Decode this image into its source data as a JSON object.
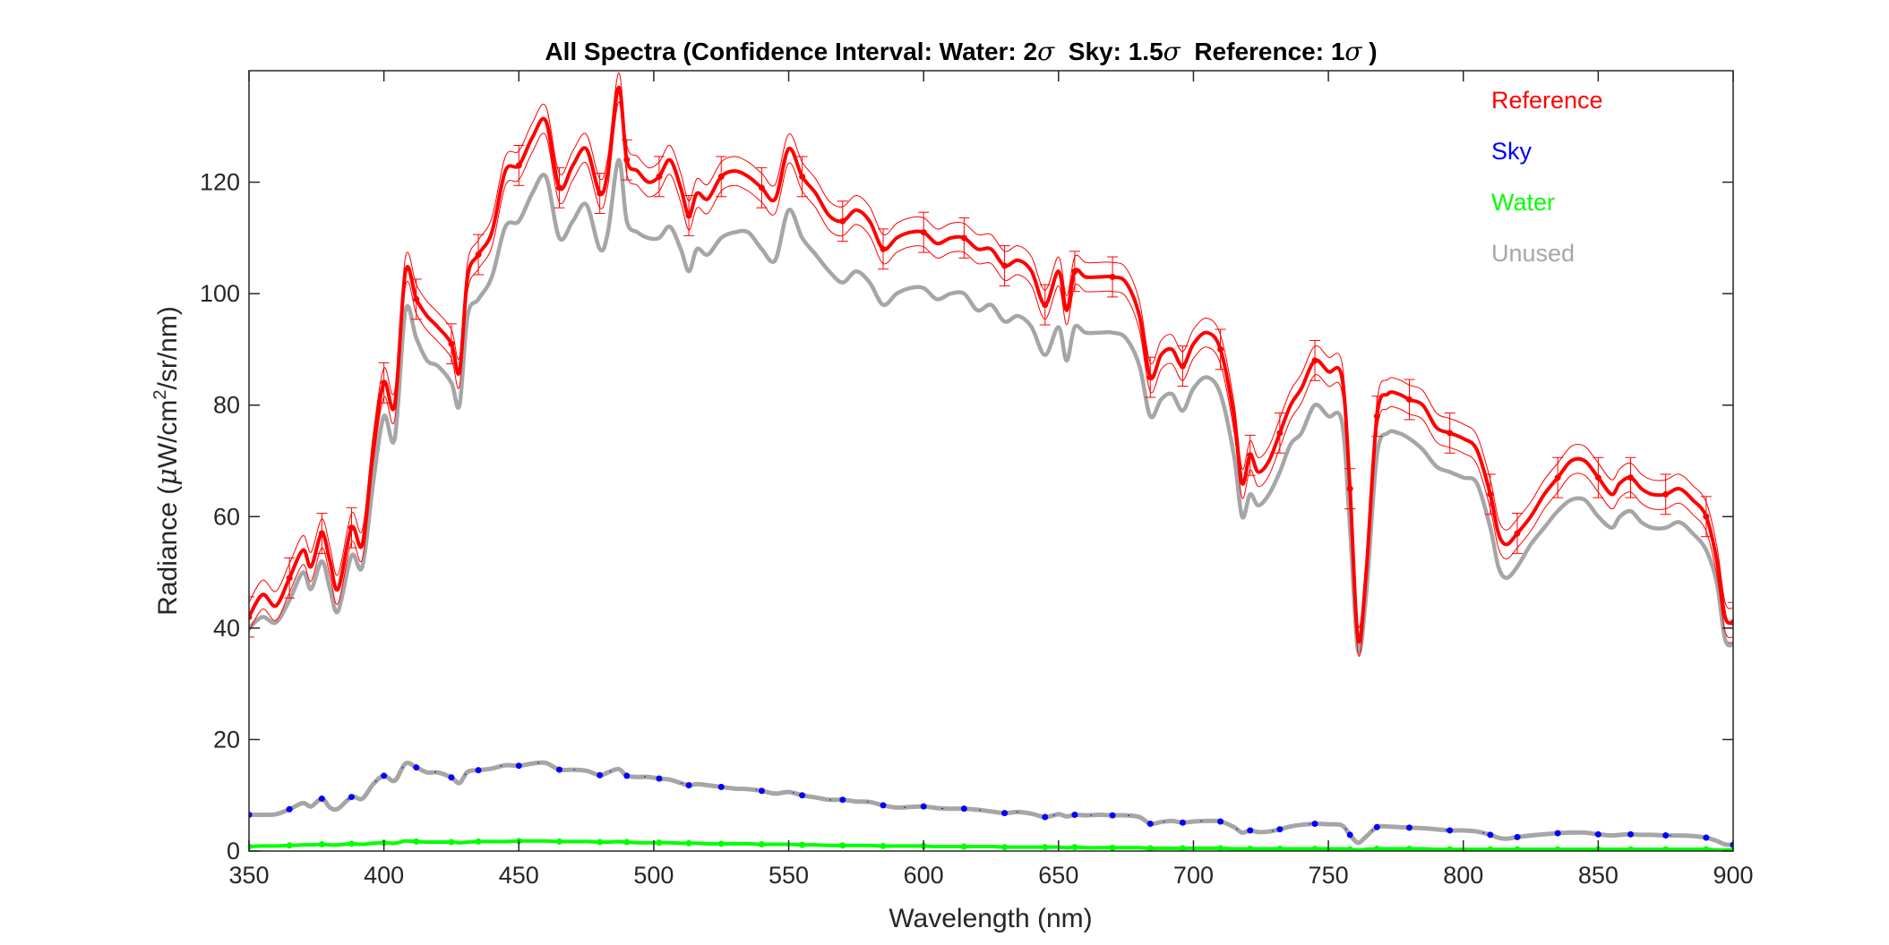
{
  "chart_data": {
    "type": "line",
    "title": {
      "prefix": "All Spectra (Confidence Interval: Water: 2",
      "sigma": "σ",
      "mid1": "  Sky: 1.5",
      "mid2": "  Reference: 1",
      "suffix": " )"
    },
    "xlabel": "Wavelength (nm)",
    "ylabel": {
      "prefix": "Radiance (",
      "mu": "μ",
      "unit": "W/cm",
      "sup": "2",
      "rest": "/sr/nm)"
    },
    "xlim": [
      350,
      900
    ],
    "ylim": [
      0,
      140
    ],
    "xticks": [
      350,
      400,
      450,
      500,
      550,
      600,
      650,
      700,
      750,
      800,
      850,
      900
    ],
    "yticks": [
      0,
      20,
      40,
      60,
      80,
      100,
      120
    ],
    "legend": [
      {
        "name": "Reference",
        "color": "#ff0000"
      },
      {
        "name": "Sky",
        "color": "#0000ff"
      },
      {
        "name": "Water",
        "color": "#00ff00"
      },
      {
        "name": "Unused",
        "color": "#a6a6a6"
      }
    ],
    "legend_position": "top-right",
    "grid": false,
    "x": [
      350,
      355,
      360,
      365,
      370,
      373,
      377,
      380,
      383,
      388,
      392,
      396,
      400,
      404,
      408,
      412,
      416,
      420,
      425,
      428,
      431,
      435,
      440,
      445,
      450,
      455,
      460,
      465,
      470,
      475,
      480,
      483,
      487,
      490,
      494,
      498,
      502,
      506,
      510,
      513,
      516,
      520,
      525,
      530,
      535,
      540,
      545,
      550,
      555,
      560,
      565,
      570,
      575,
      580,
      585,
      590,
      595,
      600,
      605,
      610,
      615,
      620,
      625,
      630,
      635,
      640,
      645,
      650,
      653,
      656,
      660,
      665,
      670,
      675,
      680,
      684,
      688,
      692,
      696,
      700,
      705,
      710,
      715,
      718,
      721,
      724,
      728,
      732,
      736,
      740,
      745,
      750,
      755,
      758,
      761,
      764,
      768,
      772,
      776,
      780,
      785,
      790,
      795,
      800,
      805,
      810,
      813,
      816,
      820,
      825,
      830,
      835,
      840,
      845,
      850,
      855,
      858,
      862,
      866,
      870,
      875,
      880,
      885,
      890,
      894,
      897,
      900
    ],
    "series": [
      {
        "name": "Reference",
        "color": "#ff0000",
        "values": [
          42,
          46,
          44,
          49,
          54,
          51,
          57,
          52,
          47,
          58,
          55,
          72,
          84,
          80,
          104,
          99,
          96,
          94,
          91,
          86,
          103,
          107,
          111,
          122,
          123,
          128,
          131,
          119,
          123,
          126,
          118,
          122,
          137,
          124,
          122,
          120,
          121,
          124,
          119,
          114,
          118,
          117,
          121,
          122,
          121,
          119,
          117,
          126,
          121,
          118,
          114,
          113,
          115,
          113,
          108,
          110,
          111,
          111,
          109,
          110,
          110,
          108,
          108,
          105,
          106,
          104,
          98,
          104,
          97,
          104,
          103,
          103,
          103,
          102,
          96,
          85,
          89,
          90,
          87,
          91,
          93,
          90,
          78,
          66,
          71,
          68,
          70,
          75,
          80,
          83,
          88,
          86,
          85,
          65,
          38,
          50,
          78,
          82,
          82,
          81,
          80,
          76,
          75,
          74,
          72,
          64,
          57,
          55,
          57,
          60,
          64,
          67,
          70,
          70,
          67,
          64,
          66,
          67,
          65,
          64,
          64,
          65,
          63,
          60,
          52,
          42,
          41
        ]
      },
      {
        "name": "Sky",
        "color": "#0000ff",
        "values": [
          6.5,
          6.5,
          6.6,
          7.5,
          8.6,
          8,
          9.4,
          7.8,
          7.6,
          9.7,
          9.4,
          12,
          13.5,
          12.6,
          15.7,
          15,
          14.1,
          14.1,
          13.2,
          12.2,
          14.2,
          14.5,
          14.8,
          15.4,
          15.3,
          15.7,
          15.8,
          14.6,
          14.6,
          14.4,
          13.6,
          14.1,
          14.7,
          13.5,
          13.3,
          13.3,
          13,
          12.8,
          12.2,
          11.8,
          12,
          11.8,
          11.5,
          11.2,
          11.1,
          10.8,
          10.3,
          10.6,
          10,
          9.6,
          9.2,
          9.2,
          8.9,
          8.8,
          8.2,
          7.8,
          7.9,
          8,
          7.7,
          7.6,
          7.6,
          7.4,
          7.1,
          6.8,
          7,
          6.7,
          6.1,
          6.6,
          6.2,
          6.5,
          6.4,
          6.5,
          6.4,
          6.4,
          6.1,
          4.9,
          5.2,
          5.4,
          5.1,
          5.3,
          5.4,
          5.3,
          4.3,
          3.3,
          3.7,
          3.4,
          3.5,
          3.9,
          4.4,
          4.7,
          4.9,
          4.8,
          4.6,
          2.9,
          1.5,
          2.6,
          4.3,
          4.4,
          4.3,
          4.2,
          4.1,
          3.9,
          3.7,
          3.7,
          3.5,
          2.9,
          2.4,
          2.2,
          2.5,
          2.8,
          3,
          3.2,
          3.3,
          3.3,
          3,
          2.8,
          2.9,
          3,
          2.9,
          2.9,
          2.8,
          2.8,
          2.7,
          2.4,
          1.8,
          1.2,
          1.1
        ]
      },
      {
        "name": "Water",
        "color": "#00ff00",
        "values": [
          0.8,
          0.9,
          0.9,
          1,
          1.1,
          1.1,
          1.2,
          1.1,
          1.1,
          1.3,
          1.2,
          1.4,
          1.5,
          1.4,
          1.8,
          1.7,
          1.6,
          1.6,
          1.6,
          1.5,
          1.6,
          1.7,
          1.7,
          1.7,
          1.8,
          1.8,
          1.8,
          1.7,
          1.7,
          1.7,
          1.6,
          1.6,
          1.7,
          1.6,
          1.5,
          1.5,
          1.5,
          1.5,
          1.4,
          1.4,
          1.4,
          1.3,
          1.3,
          1.3,
          1.3,
          1.2,
          1.2,
          1.2,
          1.1,
          1.1,
          1,
          1,
          1,
          1,
          0.9,
          0.9,
          0.9,
          0.9,
          0.8,
          0.8,
          0.8,
          0.8,
          0.8,
          0.7,
          0.7,
          0.7,
          0.7,
          0.7,
          0.6,
          0.7,
          0.6,
          0.6,
          0.6,
          0.6,
          0.6,
          0.5,
          0.5,
          0.5,
          0.5,
          0.5,
          0.5,
          0.5,
          0.4,
          0.4,
          0.4,
          0.4,
          0.4,
          0.4,
          0.4,
          0.4,
          0.4,
          0.4,
          0.4,
          0.3,
          0.2,
          0.3,
          0.4,
          0.4,
          0.4,
          0.4,
          0.4,
          0.3,
          0.3,
          0.3,
          0.3,
          0.3,
          0.3,
          0.3,
          0.3,
          0.3,
          0.3,
          0.3,
          0.3,
          0.3,
          0.3,
          0.3,
          0.3,
          0.3,
          0.3,
          0.3,
          0.3,
          0.3,
          0.3,
          0.3,
          0.2,
          0.2,
          0.2
        ]
      },
      {
        "name": "Unused",
        "color": "#a6a6a6",
        "values": [
          40,
          42,
          41,
          45,
          50,
          47,
          52,
          47,
          43,
          53,
          51,
          66,
          78,
          74,
          97,
          92,
          88,
          87,
          84,
          80,
          96,
          99,
          103,
          112,
          113,
          118,
          121,
          110,
          113,
          116,
          108,
          111,
          124,
          113,
          111,
          110,
          110,
          112,
          108,
          104,
          108,
          107,
          110,
          111,
          111,
          108,
          106,
          115,
          110,
          107,
          104,
          102,
          104,
          102,
          98,
          100,
          101,
          101,
          99,
          100,
          100,
          97,
          98,
          95,
          96,
          94,
          89,
          94,
          88,
          94,
          93,
          93,
          93,
          92,
          87,
          78,
          81,
          82,
          79,
          83,
          85,
          82,
          71,
          60,
          64,
          62,
          64,
          68,
          73,
          75,
          80,
          78,
          77,
          58,
          36,
          46,
          71,
          75,
          75,
          74,
          72,
          69,
          68,
          67,
          66,
          58,
          51,
          49,
          51,
          55,
          58,
          61,
          63,
          63,
          60,
          58,
          60,
          61,
          59,
          58,
          58,
          59,
          57,
          54,
          48,
          38,
          37
        ]
      }
    ]
  }
}
